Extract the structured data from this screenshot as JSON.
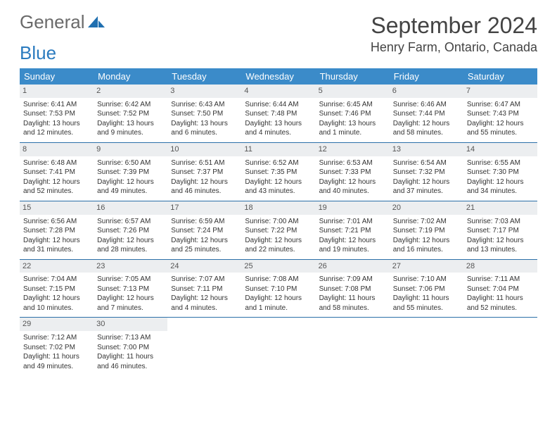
{
  "brand": {
    "part1": "General",
    "part2": "Blue"
  },
  "title": {
    "month": "September 2024",
    "location": "Henry Farm, Ontario, Canada"
  },
  "colors": {
    "header_bg": "#3b8bc9",
    "header_text": "#ffffff",
    "daynum_bg": "#eceef0",
    "row_border": "#2b6fa8",
    "logo_gray": "#6a6a6a",
    "logo_blue": "#2b7bbf"
  },
  "weekdays": [
    "Sunday",
    "Monday",
    "Tuesday",
    "Wednesday",
    "Thursday",
    "Friday",
    "Saturday"
  ],
  "weeks": [
    [
      {
        "n": "1",
        "sr": "Sunrise: 6:41 AM",
        "ss": "Sunset: 7:53 PM",
        "dl": "Daylight: 13 hours and 12 minutes."
      },
      {
        "n": "2",
        "sr": "Sunrise: 6:42 AM",
        "ss": "Sunset: 7:52 PM",
        "dl": "Daylight: 13 hours and 9 minutes."
      },
      {
        "n": "3",
        "sr": "Sunrise: 6:43 AM",
        "ss": "Sunset: 7:50 PM",
        "dl": "Daylight: 13 hours and 6 minutes."
      },
      {
        "n": "4",
        "sr": "Sunrise: 6:44 AM",
        "ss": "Sunset: 7:48 PM",
        "dl": "Daylight: 13 hours and 4 minutes."
      },
      {
        "n": "5",
        "sr": "Sunrise: 6:45 AM",
        "ss": "Sunset: 7:46 PM",
        "dl": "Daylight: 13 hours and 1 minute."
      },
      {
        "n": "6",
        "sr": "Sunrise: 6:46 AM",
        "ss": "Sunset: 7:44 PM",
        "dl": "Daylight: 12 hours and 58 minutes."
      },
      {
        "n": "7",
        "sr": "Sunrise: 6:47 AM",
        "ss": "Sunset: 7:43 PM",
        "dl": "Daylight: 12 hours and 55 minutes."
      }
    ],
    [
      {
        "n": "8",
        "sr": "Sunrise: 6:48 AM",
        "ss": "Sunset: 7:41 PM",
        "dl": "Daylight: 12 hours and 52 minutes."
      },
      {
        "n": "9",
        "sr": "Sunrise: 6:50 AM",
        "ss": "Sunset: 7:39 PM",
        "dl": "Daylight: 12 hours and 49 minutes."
      },
      {
        "n": "10",
        "sr": "Sunrise: 6:51 AM",
        "ss": "Sunset: 7:37 PM",
        "dl": "Daylight: 12 hours and 46 minutes."
      },
      {
        "n": "11",
        "sr": "Sunrise: 6:52 AM",
        "ss": "Sunset: 7:35 PM",
        "dl": "Daylight: 12 hours and 43 minutes."
      },
      {
        "n": "12",
        "sr": "Sunrise: 6:53 AM",
        "ss": "Sunset: 7:33 PM",
        "dl": "Daylight: 12 hours and 40 minutes."
      },
      {
        "n": "13",
        "sr": "Sunrise: 6:54 AM",
        "ss": "Sunset: 7:32 PM",
        "dl": "Daylight: 12 hours and 37 minutes."
      },
      {
        "n": "14",
        "sr": "Sunrise: 6:55 AM",
        "ss": "Sunset: 7:30 PM",
        "dl": "Daylight: 12 hours and 34 minutes."
      }
    ],
    [
      {
        "n": "15",
        "sr": "Sunrise: 6:56 AM",
        "ss": "Sunset: 7:28 PM",
        "dl": "Daylight: 12 hours and 31 minutes."
      },
      {
        "n": "16",
        "sr": "Sunrise: 6:57 AM",
        "ss": "Sunset: 7:26 PM",
        "dl": "Daylight: 12 hours and 28 minutes."
      },
      {
        "n": "17",
        "sr": "Sunrise: 6:59 AM",
        "ss": "Sunset: 7:24 PM",
        "dl": "Daylight: 12 hours and 25 minutes."
      },
      {
        "n": "18",
        "sr": "Sunrise: 7:00 AM",
        "ss": "Sunset: 7:22 PM",
        "dl": "Daylight: 12 hours and 22 minutes."
      },
      {
        "n": "19",
        "sr": "Sunrise: 7:01 AM",
        "ss": "Sunset: 7:21 PM",
        "dl": "Daylight: 12 hours and 19 minutes."
      },
      {
        "n": "20",
        "sr": "Sunrise: 7:02 AM",
        "ss": "Sunset: 7:19 PM",
        "dl": "Daylight: 12 hours and 16 minutes."
      },
      {
        "n": "21",
        "sr": "Sunrise: 7:03 AM",
        "ss": "Sunset: 7:17 PM",
        "dl": "Daylight: 12 hours and 13 minutes."
      }
    ],
    [
      {
        "n": "22",
        "sr": "Sunrise: 7:04 AM",
        "ss": "Sunset: 7:15 PM",
        "dl": "Daylight: 12 hours and 10 minutes."
      },
      {
        "n": "23",
        "sr": "Sunrise: 7:05 AM",
        "ss": "Sunset: 7:13 PM",
        "dl": "Daylight: 12 hours and 7 minutes."
      },
      {
        "n": "24",
        "sr": "Sunrise: 7:07 AM",
        "ss": "Sunset: 7:11 PM",
        "dl": "Daylight: 12 hours and 4 minutes."
      },
      {
        "n": "25",
        "sr": "Sunrise: 7:08 AM",
        "ss": "Sunset: 7:10 PM",
        "dl": "Daylight: 12 hours and 1 minute."
      },
      {
        "n": "26",
        "sr": "Sunrise: 7:09 AM",
        "ss": "Sunset: 7:08 PM",
        "dl": "Daylight: 11 hours and 58 minutes."
      },
      {
        "n": "27",
        "sr": "Sunrise: 7:10 AM",
        "ss": "Sunset: 7:06 PM",
        "dl": "Daylight: 11 hours and 55 minutes."
      },
      {
        "n": "28",
        "sr": "Sunrise: 7:11 AM",
        "ss": "Sunset: 7:04 PM",
        "dl": "Daylight: 11 hours and 52 minutes."
      }
    ],
    [
      {
        "n": "29",
        "sr": "Sunrise: 7:12 AM",
        "ss": "Sunset: 7:02 PM",
        "dl": "Daylight: 11 hours and 49 minutes."
      },
      {
        "n": "30",
        "sr": "Sunrise: 7:13 AM",
        "ss": "Sunset: 7:00 PM",
        "dl": "Daylight: 11 hours and 46 minutes."
      },
      null,
      null,
      null,
      null,
      null
    ]
  ]
}
